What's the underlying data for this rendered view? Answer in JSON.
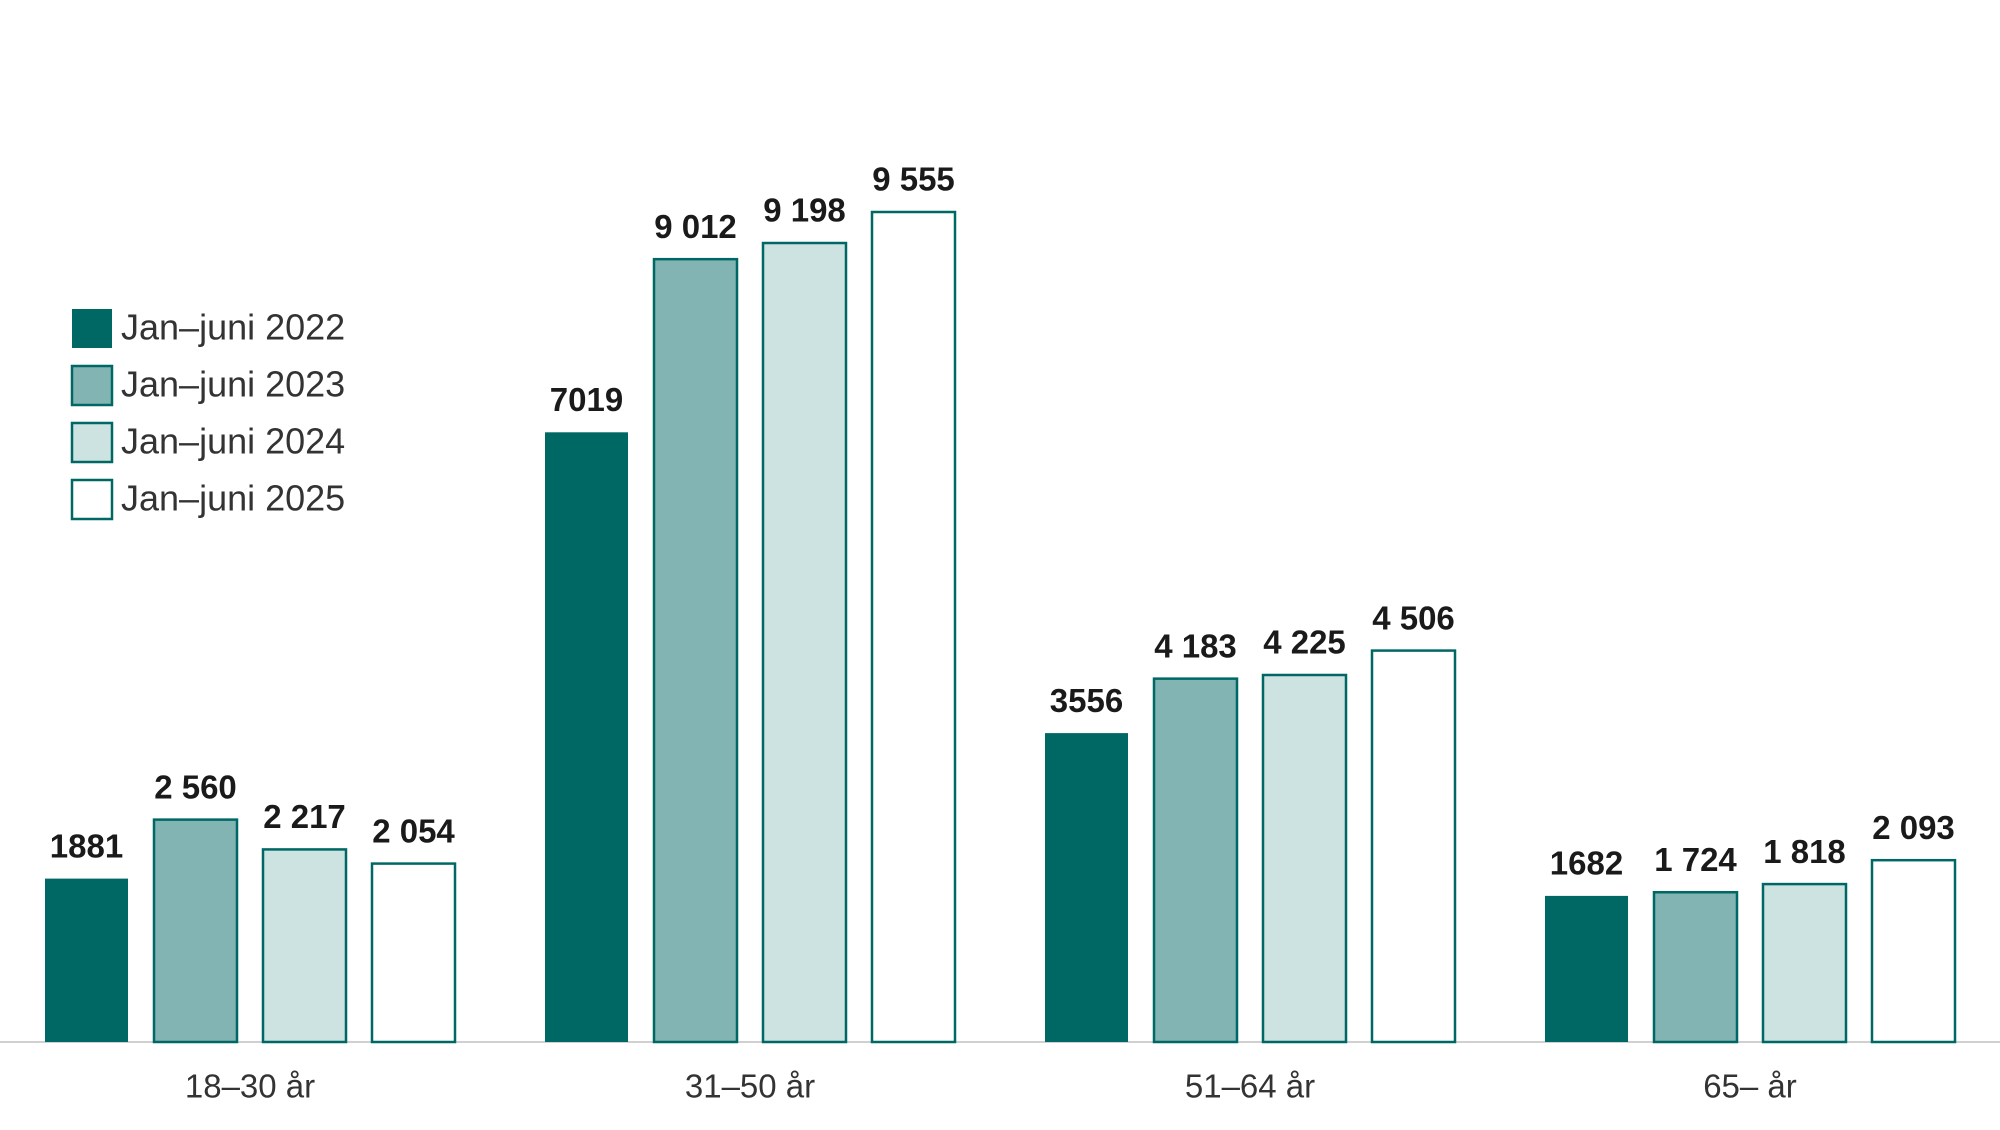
{
  "chart_data": {
    "type": "bar",
    "categories": [
      "18–30 år",
      "31–50 år",
      "51–64 år",
      "65– år"
    ],
    "series": [
      {
        "name": "Jan–juni 2022",
        "color": "#006864",
        "values": [
          1881,
          7019,
          3556,
          1682
        ]
      },
      {
        "name": "Jan–juni 2023",
        "color": "#82b4b3",
        "values": [
          2560,
          9012,
          4183,
          1724
        ],
        "value_labels": [
          "2 560",
          "9 012",
          "4 183",
          "1 724"
        ]
      },
      {
        "name": "Jan–juni 2024",
        "color": "#cde3e2",
        "values": [
          2217,
          9198,
          4225,
          1818
        ],
        "value_labels": [
          "2 217",
          "9 198",
          "4 225",
          "1 818"
        ]
      },
      {
        "name": "Jan–juni 2025",
        "color": "#ffffff",
        "values": [
          2054,
          9555,
          4506,
          2093
        ],
        "value_labels": [
          "2 054",
          "9 555",
          "4 506",
          "2 093"
        ]
      }
    ],
    "edge_color": "#006864",
    "legend": "upper left"
  }
}
